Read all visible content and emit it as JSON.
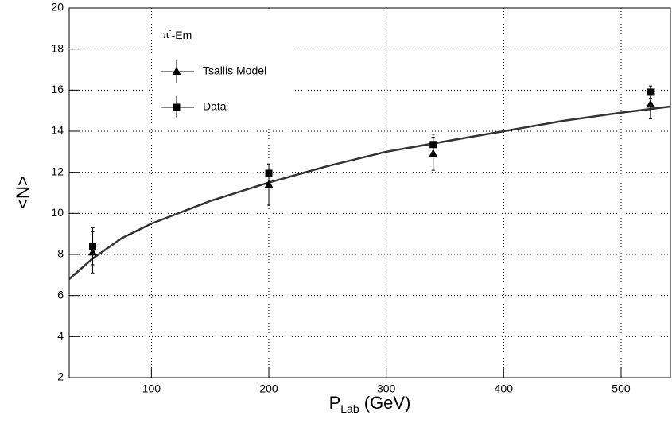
{
  "chart_data": {
    "type": "scatter",
    "xlabel": [
      "P",
      "Lab",
      " (GeV)"
    ],
    "ylabel": "<N>",
    "annotation": [
      "π",
      "-",
      "-Em"
    ],
    "xlim": [
      30,
      542
    ],
    "ylim": [
      2,
      20
    ],
    "xticks": [
      100,
      200,
      300,
      400,
      500
    ],
    "yticks": [
      2,
      4,
      6,
      8,
      10,
      12,
      14,
      16,
      18,
      20
    ],
    "grid": true,
    "series": [
      {
        "name": "Tsallis Model",
        "marker": "triangle",
        "color": "#000000",
        "x": [
          50,
          200,
          340,
          525
        ],
        "values": [
          8.1,
          11.4,
          12.9,
          15.3
        ],
        "errors": [
          1.0,
          1.0,
          0.8,
          0.7
        ]
      },
      {
        "name": "Data",
        "marker": "square",
        "color": "#000000",
        "x": [
          50,
          200,
          340,
          525
        ],
        "values": [
          8.4,
          11.95,
          13.35,
          15.9
        ],
        "errors": [
          0.9,
          0.45,
          0.5,
          0.3
        ]
      }
    ],
    "curve": {
      "color": "#333333",
      "x": [
        30,
        50,
        75,
        100,
        150,
        200,
        250,
        300,
        350,
        400,
        450,
        500,
        542
      ],
      "values": [
        6.8,
        7.8,
        8.8,
        9.5,
        10.6,
        11.5,
        12.3,
        13.0,
        13.5,
        14.0,
        14.5,
        14.9,
        15.2
      ]
    }
  }
}
